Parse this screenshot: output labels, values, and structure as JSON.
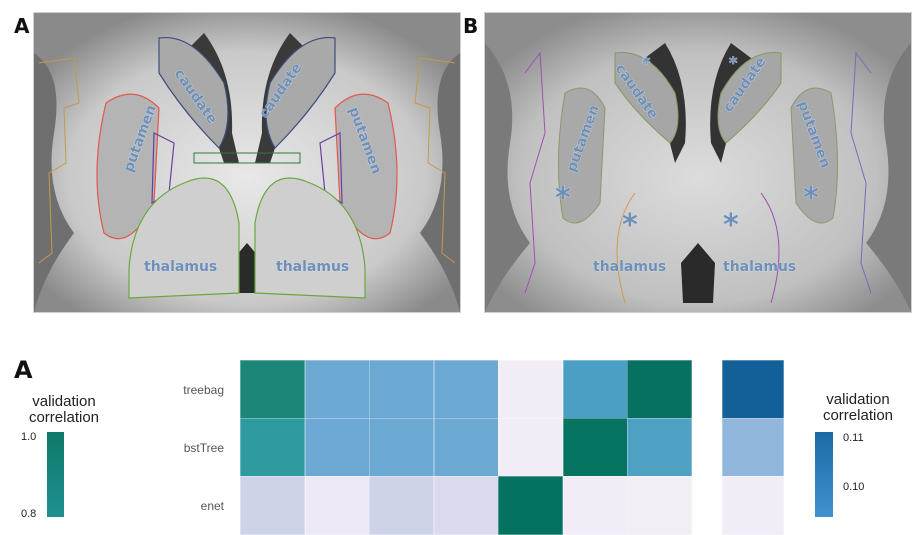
{
  "top_panels": [
    {
      "letter": "A",
      "labels": {
        "caudate_left": "caudate",
        "caudate_right": "caudate",
        "putamen_left": "putamen",
        "putamen_right": "putamen",
        "thalamus_left": "thalamus",
        "thalamus_right": "thalamus"
      }
    },
    {
      "letter": "B",
      "labels": {
        "caudate_left": "caudate",
        "caudate_right": "caudate",
        "putamen_left": "putamen",
        "putamen_right": "putamen",
        "thalamus_left": "thalamus",
        "thalamus_right": "thalamus"
      },
      "markers": "*"
    }
  ],
  "bottom": {
    "letter": "A",
    "legend_left": {
      "title_line1": "validation",
      "title_line2": "correlation",
      "ticks": [
        "1.0",
        "0.8"
      ],
      "color": "#0f7a69"
    },
    "legend_right": {
      "title_line1": "validation",
      "title_line2": "correlation",
      "ticks": [
        "0.11",
        "0.10"
      ],
      "color": "#1b6aa5"
    },
    "rows": [
      "treebag",
      "bstTree",
      "enet"
    ],
    "main_colors": [
      [
        "#1c8679",
        "#6ba9d3",
        "#6ba9d3",
        "#6ba9d3",
        "#f1ecf5",
        "#4c9fc4",
        "#067061"
      ],
      [
        "#2f9aa0",
        "#6ea8d4",
        "#6ba9d3",
        "#6ba9d3",
        "#f1ecf5",
        "#077462",
        "#4fa1c3"
      ],
      [
        "#cfd3e8",
        "#ece9f4",
        "#cfd3e8",
        "#d9daed",
        "#057261",
        "#f1ecf5",
        "#f2eef6"
      ]
    ],
    "side_colors": [
      "#135f98",
      "#91b6dc",
      "#f1edf6"
    ]
  }
}
